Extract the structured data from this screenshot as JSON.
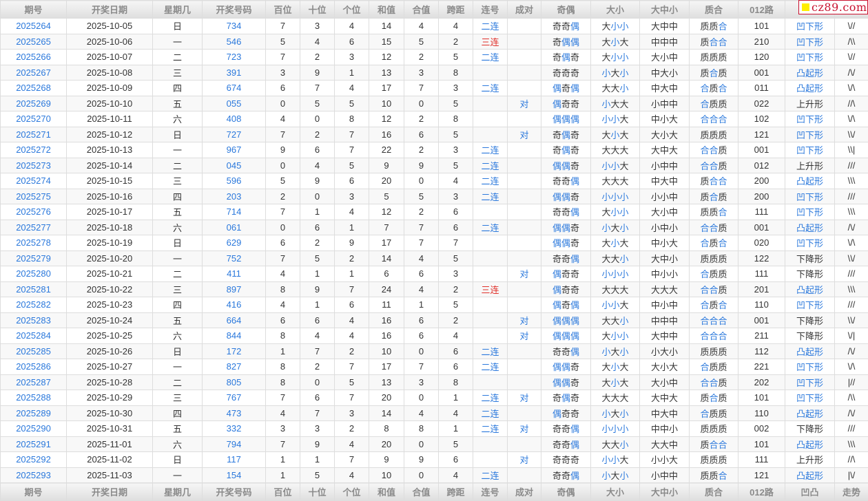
{
  "columns": [
    "期号",
    "开奖日期",
    "星期几",
    "开奖号码",
    "百位",
    "十位",
    "个位",
    "和值",
    "合值",
    "跨距",
    "连号",
    "成对",
    "奇偶",
    "大小",
    "大中小",
    "质合",
    "012路",
    "凹凸",
    "走势"
  ],
  "logo": {
    "text": "cz89.com"
  },
  "colors": {
    "accent_blue": "#2a78dc",
    "highlight_red": "#e0302a",
    "logo_red": "#c8102e",
    "logo_yellow": "#ffee00"
  },
  "highlight_chars_blue": "偶小合",
  "rows": [
    [
      "2025264",
      "2025-10-05",
      "日",
      "734",
      "7",
      "3",
      "4",
      "14",
      "4",
      "4",
      "二连",
      "",
      "奇奇偶",
      "大小小",
      "大中中",
      "质质合",
      "101",
      "凹下形",
      "\\//"
    ],
    [
      "2025265",
      "2025-10-06",
      "一",
      "546",
      "5",
      "4",
      "6",
      "15",
      "5",
      "2",
      "三连",
      "",
      "奇偶偶",
      "大小大",
      "中中中",
      "质合合",
      "210",
      "凹下形",
      "/\\\\"
    ],
    [
      "2025266",
      "2025-10-07",
      "二",
      "723",
      "7",
      "2",
      "3",
      "12",
      "2",
      "5",
      "二连",
      "",
      "奇偶奇",
      "大小小",
      "大小中",
      "质质质",
      "120",
      "凹下形",
      "\\//"
    ],
    [
      "2025267",
      "2025-10-08",
      "三",
      "391",
      "3",
      "9",
      "1",
      "13",
      "3",
      "8",
      "",
      "",
      "奇奇奇",
      "小大小",
      "中大小",
      "质合质",
      "001",
      "凸起形",
      "/\\/"
    ],
    [
      "2025268",
      "2025-10-09",
      "四",
      "674",
      "6",
      "7",
      "4",
      "17",
      "7",
      "3",
      "二连",
      "",
      "偶奇偶",
      "大大小",
      "中大中",
      "合质合",
      "011",
      "凸起形",
      "\\/\\"
    ],
    [
      "2025269",
      "2025-10-10",
      "五",
      "055",
      "0",
      "5",
      "5",
      "10",
      "0",
      "5",
      "",
      "对",
      "偶奇奇",
      "小大大",
      "小中中",
      "合质质",
      "022",
      "上升形",
      "//\\"
    ],
    [
      "2025270",
      "2025-10-11",
      "六",
      "408",
      "4",
      "0",
      "8",
      "12",
      "2",
      "8",
      "",
      "",
      "偶偶偶",
      "小小大",
      "中小大",
      "合合合",
      "102",
      "凹下形",
      "\\/\\"
    ],
    [
      "2025271",
      "2025-10-12",
      "日",
      "727",
      "7",
      "2",
      "7",
      "16",
      "6",
      "5",
      "",
      "对",
      "奇偶奇",
      "大小大",
      "大小大",
      "质质质",
      "121",
      "凹下形",
      "\\\\/"
    ],
    [
      "2025272",
      "2025-10-13",
      "一",
      "967",
      "9",
      "6",
      "7",
      "22",
      "2",
      "3",
      "二连",
      "",
      "奇偶奇",
      "大大大",
      "大中大",
      "合合质",
      "001",
      "凹下形",
      "\\\\|"
    ],
    [
      "2025273",
      "2025-10-14",
      "二",
      "045",
      "0",
      "4",
      "5",
      "9",
      "9",
      "5",
      "二连",
      "",
      "偶偶奇",
      "小小大",
      "小中中",
      "合合质",
      "012",
      "上升形",
      "///"
    ],
    [
      "2025274",
      "2025-10-15",
      "三",
      "596",
      "5",
      "9",
      "6",
      "20",
      "0",
      "4",
      "二连",
      "",
      "奇奇偶",
      "大大大",
      "中大中",
      "质合合",
      "200",
      "凸起形",
      "\\\\\\"
    ],
    [
      "2025275",
      "2025-10-16",
      "四",
      "203",
      "2",
      "0",
      "3",
      "5",
      "5",
      "3",
      "二连",
      "",
      "偶偶奇",
      "小小小",
      "小小中",
      "质合质",
      "200",
      "凹下形",
      "///"
    ],
    [
      "2025276",
      "2025-10-17",
      "五",
      "714",
      "7",
      "1",
      "4",
      "12",
      "2",
      "6",
      "",
      "",
      "奇奇偶",
      "大小小",
      "大小中",
      "质质合",
      "111",
      "凹下形",
      "\\\\\\"
    ],
    [
      "2025277",
      "2025-10-18",
      "六",
      "061",
      "0",
      "6",
      "1",
      "7",
      "7",
      "6",
      "二连",
      "",
      "偶偶奇",
      "小大小",
      "小中小",
      "合合质",
      "001",
      "凸起形",
      "/\\/"
    ],
    [
      "2025278",
      "2025-10-19",
      "日",
      "629",
      "6",
      "2",
      "9",
      "17",
      "7",
      "7",
      "",
      "",
      "偶偶奇",
      "大小大",
      "中小大",
      "合质合",
      "020",
      "凹下形",
      "\\/\\"
    ],
    [
      "2025279",
      "2025-10-20",
      "一",
      "752",
      "7",
      "5",
      "2",
      "14",
      "4",
      "5",
      "",
      "",
      "奇奇偶",
      "大大小",
      "大中小",
      "质质质",
      "122",
      "下降形",
      "\\\\/"
    ],
    [
      "2025280",
      "2025-10-21",
      "二",
      "411",
      "4",
      "1",
      "1",
      "6",
      "6",
      "3",
      "",
      "对",
      "偶奇奇",
      "小小小",
      "中小小",
      "合质质",
      "111",
      "下降形",
      "///"
    ],
    [
      "2025281",
      "2025-10-22",
      "三",
      "897",
      "8",
      "9",
      "7",
      "24",
      "4",
      "2",
      "三连",
      "",
      "偶奇奇",
      "大大大",
      "大大大",
      "合合质",
      "201",
      "凸起形",
      "\\\\\\"
    ],
    [
      "2025282",
      "2025-10-23",
      "四",
      "416",
      "4",
      "1",
      "6",
      "11",
      "1",
      "5",
      "",
      "",
      "偶奇偶",
      "小小大",
      "中小中",
      "合质合",
      "110",
      "凹下形",
      "///"
    ],
    [
      "2025283",
      "2025-10-24",
      "五",
      "664",
      "6",
      "6",
      "4",
      "16",
      "6",
      "2",
      "",
      "对",
      "偶偶偶",
      "大大小",
      "中中中",
      "合合合",
      "001",
      "下降形",
      "\\\\/"
    ],
    [
      "2025284",
      "2025-10-25",
      "六",
      "844",
      "8",
      "4",
      "4",
      "16",
      "6",
      "4",
      "",
      "对",
      "偶偶偶",
      "大小小",
      "大中中",
      "合合合",
      "211",
      "下降形",
      "\\/|"
    ],
    [
      "2025285",
      "2025-10-26",
      "日",
      "172",
      "1",
      "7",
      "2",
      "10",
      "0",
      "6",
      "二连",
      "",
      "奇奇偶",
      "小大小",
      "小大小",
      "质质质",
      "112",
      "凸起形",
      "/\\/"
    ],
    [
      "2025286",
      "2025-10-27",
      "一",
      "827",
      "8",
      "2",
      "7",
      "17",
      "7",
      "6",
      "二连",
      "",
      "偶偶奇",
      "大小大",
      "大小大",
      "合质质",
      "221",
      "凹下形",
      "\\/\\"
    ],
    [
      "2025287",
      "2025-10-28",
      "二",
      "805",
      "8",
      "0",
      "5",
      "13",
      "3",
      "8",
      "",
      "",
      "偶偶奇",
      "大小大",
      "大小中",
      "合合质",
      "202",
      "凹下形",
      "|//"
    ],
    [
      "2025288",
      "2025-10-29",
      "三",
      "767",
      "7",
      "6",
      "7",
      "20",
      "0",
      "1",
      "二连",
      "对",
      "奇偶奇",
      "大大大",
      "大中大",
      "质合质",
      "101",
      "凹下形",
      "/\\\\"
    ],
    [
      "2025289",
      "2025-10-30",
      "四",
      "473",
      "4",
      "7",
      "3",
      "14",
      "4",
      "4",
      "二连",
      "",
      "偶奇奇",
      "小大小",
      "中大中",
      "合质质",
      "110",
      "凸起形",
      "/\\/"
    ],
    [
      "2025290",
      "2025-10-31",
      "五",
      "332",
      "3",
      "3",
      "2",
      "8",
      "8",
      "1",
      "二连",
      "对",
      "奇奇偶",
      "小小小",
      "中中小",
      "质质质",
      "002",
      "下降形",
      "///"
    ],
    [
      "2025291",
      "2025-11-01",
      "六",
      "794",
      "7",
      "9",
      "4",
      "20",
      "0",
      "5",
      "",
      "",
      "奇奇偶",
      "大大小",
      "大大中",
      "质合合",
      "101",
      "凸起形",
      "\\\\\\"
    ],
    [
      "2025292",
      "2025-11-02",
      "日",
      "117",
      "1",
      "1",
      "7",
      "9",
      "9",
      "6",
      "",
      "对",
      "奇奇奇",
      "小小大",
      "小小大",
      "质质质",
      "111",
      "上升形",
      "//\\"
    ],
    [
      "2025293",
      "2025-11-03",
      "一",
      "154",
      "1",
      "5",
      "4",
      "10",
      "0",
      "4",
      "二连",
      "",
      "奇奇偶",
      "小大小",
      "小中中",
      "质质合",
      "121",
      "凸起形",
      "|\\/"
    ]
  ]
}
